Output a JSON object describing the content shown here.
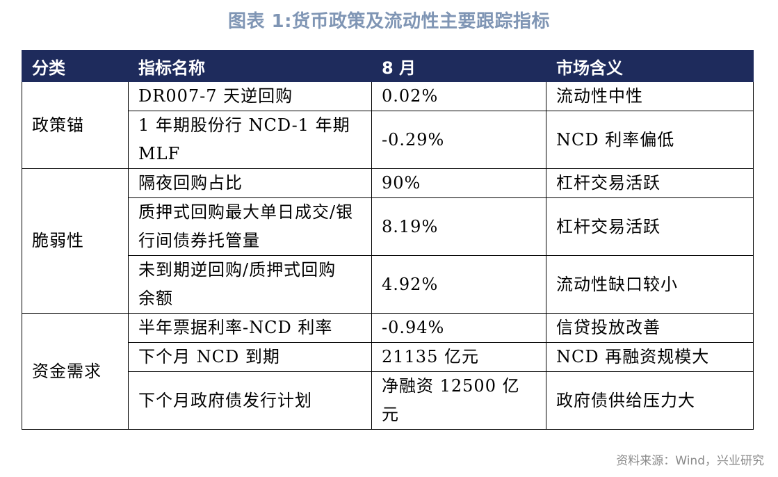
{
  "title": "图表 1:货币政策及流动性主要跟踪指标",
  "table": {
    "headers": [
      "分类",
      "指标名称",
      "8 月",
      "市场含义"
    ],
    "groups": [
      {
        "category": "政策锚",
        "rows": [
          {
            "indicator": "DR007-7 天逆回购",
            "value": "0.02%",
            "meaning": "流动性中性"
          },
          {
            "indicator": "1 年期股份行 NCD-1 年期MLF",
            "value": "-0.29%",
            "meaning": "NCD 利率偏低"
          }
        ]
      },
      {
        "category": "脆弱性",
        "rows": [
          {
            "indicator": "隔夜回购占比",
            "value": "90%",
            "meaning": "杠杆交易活跃"
          },
          {
            "indicator": "质押式回购最大单日成交/银行间债券托管量",
            "value": "8.19%",
            "meaning": "杠杆交易活跃"
          },
          {
            "indicator": "未到期逆回购/质押式回购余额",
            "value": "4.92%",
            "meaning": "流动性缺口较小"
          }
        ]
      },
      {
        "category": "资金需求",
        "rows": [
          {
            "indicator": "半年票据利率-NCD 利率",
            "value": "-0.94%",
            "meaning": "信贷投放改善"
          },
          {
            "indicator": "下个月 NCD 到期",
            "value": "21135 亿元",
            "meaning": "NCD 再融资规模大"
          },
          {
            "indicator": "下个月政府债发行计划",
            "value": "净融资 12500 亿元",
            "meaning": "政府债供给压力大"
          }
        ]
      }
    ]
  },
  "source": "资料来源：Wind，兴业研究"
}
